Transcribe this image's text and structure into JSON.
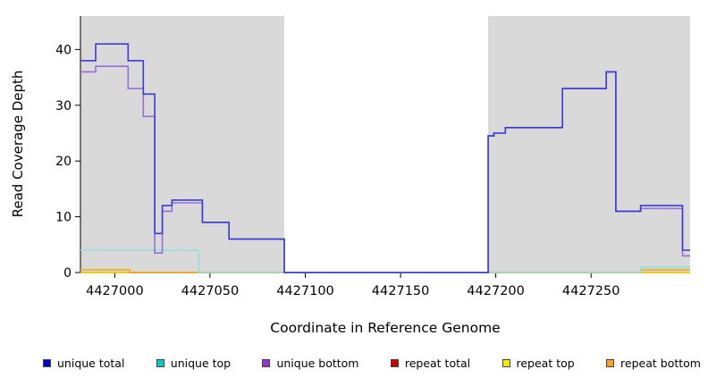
{
  "chart_data": {
    "type": "line",
    "subtype": "step-coverage",
    "title": "",
    "xlabel": "Coordinate in Reference Genome",
    "ylabel": "Read Coverage Depth",
    "xlim": [
      4426982,
      4427302
    ],
    "ylim": [
      0,
      46
    ],
    "xticks": [
      4427000,
      4427050,
      4427100,
      4427150,
      4427200,
      4427250
    ],
    "yticks": [
      0,
      10,
      20,
      30,
      40
    ],
    "grid": false,
    "background": "#ffffff",
    "shaded_regions": [
      {
        "from": 4426982,
        "to": 4427089,
        "color": "#d9d9d9"
      },
      {
        "from": 4427196,
        "to": 4427302,
        "color": "#d9d9d9"
      }
    ],
    "series": [
      {
        "name": "repeat total",
        "color": "#cc0000",
        "steps": [
          [
            4426982,
            0
          ]
        ]
      },
      {
        "name": "repeat top",
        "color": "#eded00",
        "steps": [
          [
            4426982,
            0
          ]
        ]
      },
      {
        "name": "repeat bottom",
        "color": "#f5a623",
        "steps": [
          [
            4426982,
            0.5
          ],
          [
            4427008,
            0
          ],
          [
            4427276,
            0.5
          ]
        ]
      },
      {
        "name": "unique top",
        "color": "#8fe0e0",
        "steps": [
          [
            4426982,
            4
          ],
          [
            4427044,
            0
          ],
          [
            4427276,
            1
          ]
        ]
      },
      {
        "name": "unique bottom",
        "color": "#9370db",
        "steps": [
          [
            4426982,
            36
          ],
          [
            4426990,
            37
          ],
          [
            4427007,
            33
          ],
          [
            4427015,
            28
          ],
          [
            4427021,
            3.5
          ],
          [
            4427025,
            11
          ],
          [
            4427030,
            12.5
          ],
          [
            4427046,
            9
          ],
          [
            4427060,
            6
          ],
          [
            4427089,
            0
          ],
          [
            4427196,
            24.5
          ],
          [
            4427199,
            25
          ],
          [
            4427205,
            26
          ],
          [
            4427235,
            33
          ],
          [
            4427258,
            36
          ],
          [
            4427263,
            11
          ],
          [
            4427276,
            11.5
          ],
          [
            4427298,
            3
          ]
        ]
      },
      {
        "name": "unique total",
        "color": "#3c3cd1",
        "steps": [
          [
            4426982,
            38
          ],
          [
            4426990,
            41
          ],
          [
            4427007,
            38
          ],
          [
            4427015,
            32
          ],
          [
            4427021,
            7
          ],
          [
            4427025,
            12
          ],
          [
            4427030,
            13
          ],
          [
            4427046,
            9
          ],
          [
            4427060,
            6
          ],
          [
            4427089,
            0
          ],
          [
            4427196,
            24.5
          ],
          [
            4427199,
            25
          ],
          [
            4427205,
            26
          ],
          [
            4427235,
            33
          ],
          [
            4427258,
            36
          ],
          [
            4427263,
            11
          ],
          [
            4427276,
            12
          ],
          [
            4427298,
            4
          ]
        ]
      }
    ],
    "legend": {
      "position": "bottom",
      "items": [
        {
          "label": "unique total",
          "color": "#0000cc"
        },
        {
          "label": "unique top",
          "color": "#00cccc"
        },
        {
          "label": "unique bottom",
          "color": "#9933cc"
        },
        {
          "label": "repeat total",
          "color": "#cc0000"
        },
        {
          "label": "repeat top",
          "color": "#eded00"
        },
        {
          "label": "repeat bottom",
          "color": "#f5a623"
        }
      ]
    }
  }
}
